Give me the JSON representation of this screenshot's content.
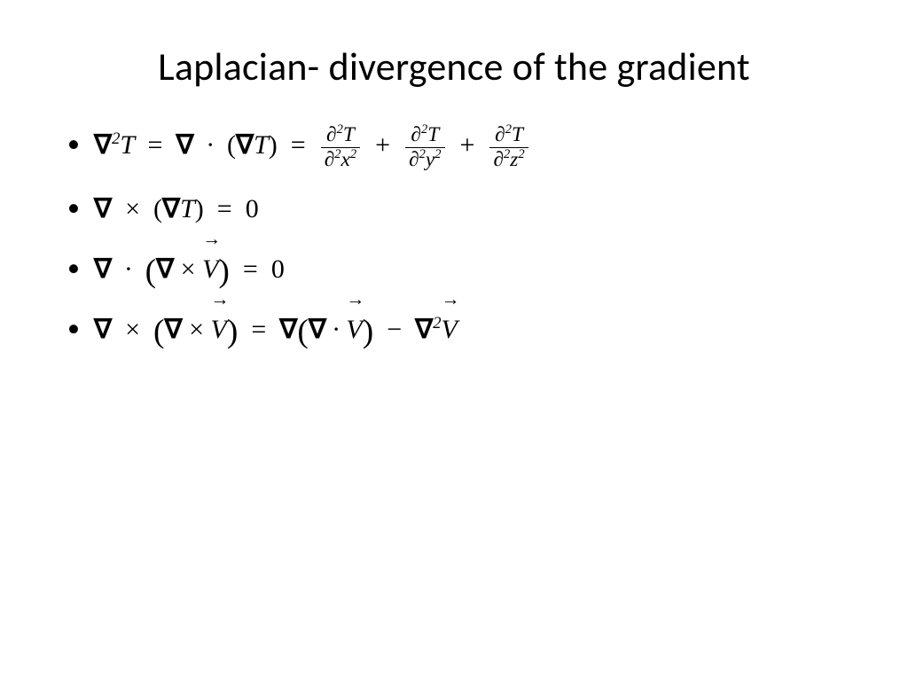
{
  "colors": {
    "bg": "#ffffff",
    "fg": "#000000"
  },
  "typography": {
    "title_fontsize": 44,
    "body_fontsize": 30,
    "math_family": "Cambria Math"
  },
  "title": "Laplacian- divergence of the gradient",
  "symbols": {
    "nabla": "∇",
    "times": "×",
    "dot": "∙",
    "minus": "−",
    "plus": "+",
    "eq": "=",
    "zero": "0",
    "partial": "∂",
    "sq": "2",
    "T": "T",
    "V": "V",
    "x": "x",
    "y": "y",
    "z": "z",
    "arrow": "→",
    "lpar": "(",
    "rpar": ")"
  }
}
